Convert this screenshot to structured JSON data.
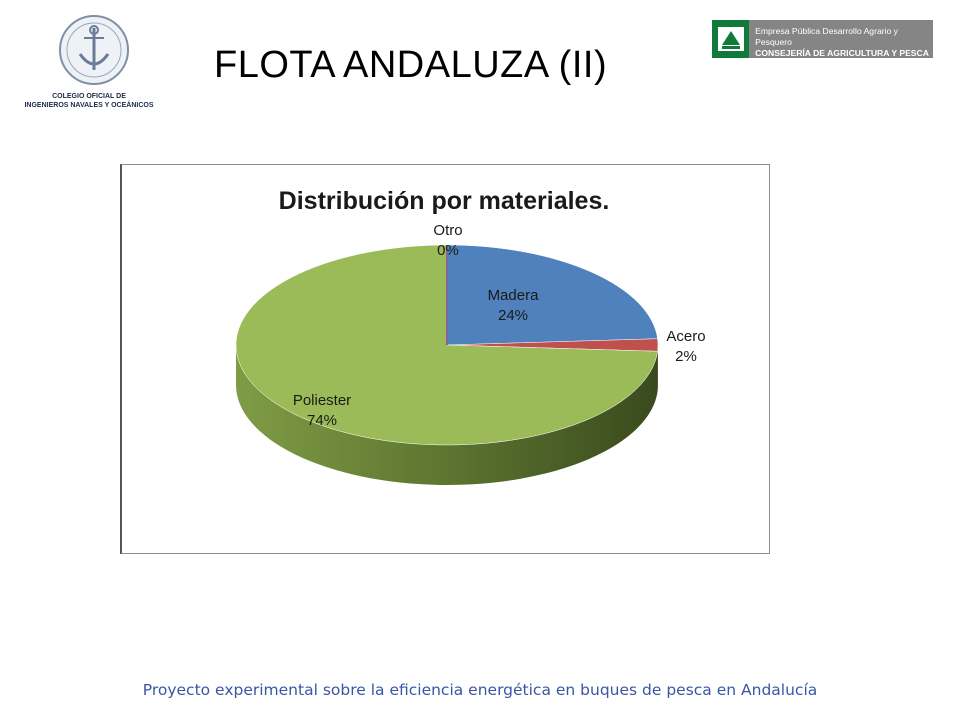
{
  "header": {
    "title": "FLOTA ANDALUZA (II)",
    "left_logo": {
      "icon": "college-seal-icon",
      "caption_line1": "COLEGIO OFICIAL DE",
      "caption_line2": "INGENIEROS NAVALES Y OCEÁNICOS"
    },
    "right_logo": {
      "icon": "junta-andalucia-icon",
      "line1": "Empresa Pública Desarrollo Agrario y Pesquero",
      "line2": "CONSEJERÍA DE AGRICULTURA Y PESCA"
    }
  },
  "chart_data": {
    "type": "pie",
    "title": "Distribución por materiales.",
    "slices": [
      {
        "label": "Madera",
        "value": 24,
        "display": "24%",
        "color": "#4f81bd"
      },
      {
        "label": "Acero",
        "value": 2,
        "display": "2%",
        "color": "#c0504d"
      },
      {
        "label": "Poliester",
        "value": 74,
        "display": "74%",
        "color": "#9bbb59"
      },
      {
        "label": "Otro",
        "value": 0,
        "display": "0%",
        "color": "#8064a2"
      }
    ],
    "legend": "none",
    "style": "3d"
  },
  "footer": {
    "text": "Proyecto experimental sobre la eficiencia energética en buques de pesca en Andalucía"
  }
}
